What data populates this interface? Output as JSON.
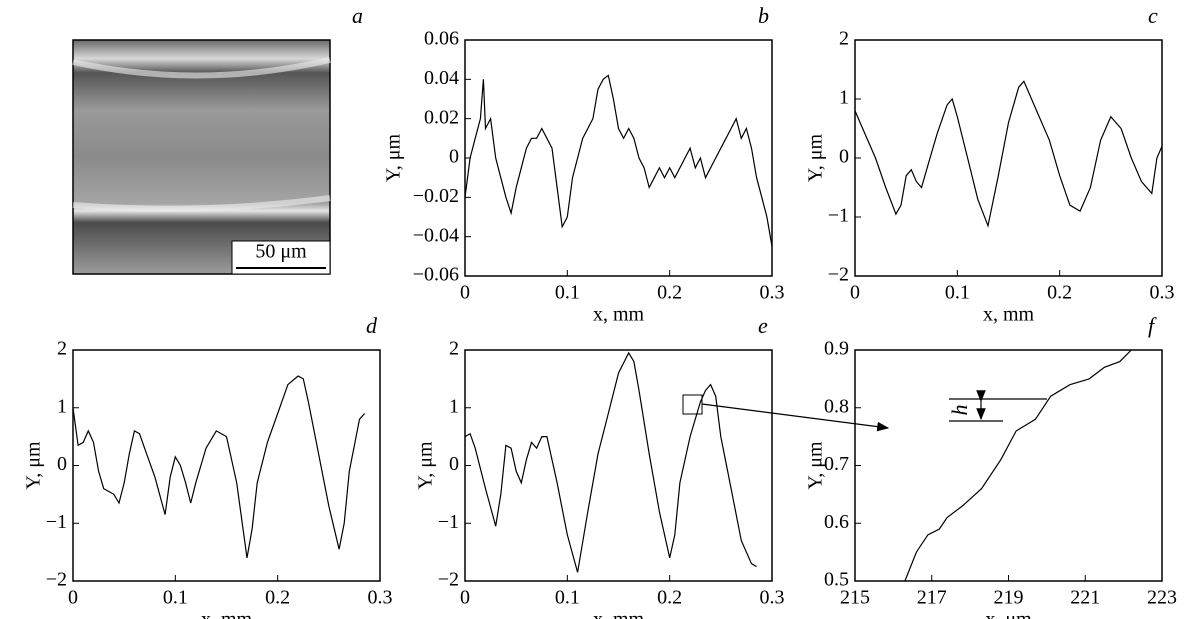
{
  "image_panel": {
    "label": "a",
    "scale_bar": "50 μm"
  },
  "chart_data": [
    {
      "type": "line",
      "label": "b",
      "xlabel": "x, mm",
      "ylabel": "Y, μm",
      "xlim": [
        0,
        0.3
      ],
      "xticks": [
        0,
        0.1,
        0.2,
        0.3
      ],
      "ylim": [
        -0.06,
        0.06
      ],
      "yticks": [
        {
          "value": -0.06,
          "label": "−0.06"
        },
        {
          "value": -0.04,
          "label": "−0.04"
        },
        {
          "value": -0.02,
          "label": "−0.02"
        },
        0,
        0.02,
        0.04,
        0.06
      ],
      "series": [
        {
          "color": "#000000",
          "x": [
            0,
            0.005,
            0.01,
            0.015,
            0.018,
            0.02,
            0.025,
            0.03,
            0.035,
            0.04,
            0.045,
            0.05,
            0.055,
            0.06,
            0.065,
            0.07,
            0.075,
            0.08,
            0.085,
            0.09,
            0.095,
            0.1,
            0.105,
            0.11,
            0.115,
            0.12,
            0.125,
            0.13,
            0.135,
            0.14,
            0.145,
            0.15,
            0.155,
            0.16,
            0.165,
            0.17,
            0.175,
            0.18,
            0.185,
            0.19,
            0.195,
            0.2,
            0.205,
            0.21,
            0.215,
            0.22,
            0.225,
            0.23,
            0.235,
            0.24,
            0.245,
            0.25,
            0.255,
            0.26,
            0.265,
            0.27,
            0.275,
            0.28,
            0.285,
            0.29,
            0.295,
            0.3
          ],
          "values": [
            -0.02,
            0.0,
            0.01,
            0.02,
            0.04,
            0.015,
            0.02,
            0.0,
            -0.01,
            -0.02,
            -0.028,
            -0.015,
            -0.005,
            0.005,
            0.01,
            0.01,
            0.015,
            0.01,
            0.005,
            -0.015,
            -0.035,
            -0.03,
            -0.01,
            0.0,
            0.01,
            0.015,
            0.02,
            0.035,
            0.04,
            0.042,
            0.03,
            0.015,
            0.01,
            0.015,
            0.01,
            0.0,
            -0.005,
            -0.015,
            -0.01,
            -0.005,
            -0.01,
            -0.005,
            -0.01,
            -0.005,
            0.0,
            0.005,
            -0.005,
            0.0,
            -0.01,
            -0.005,
            0.0,
            0.005,
            0.01,
            0.015,
            0.02,
            0.01,
            0.015,
            0.005,
            -0.01,
            -0.02,
            -0.03,
            -0.045
          ]
        }
      ]
    },
    {
      "type": "line",
      "label": "c",
      "xlabel": "x, mm",
      "ylabel": "Y, μm",
      "xlim": [
        0,
        0.3
      ],
      "xticks": [
        0,
        0.1,
        0.2,
        0.3
      ],
      "ylim": [
        -2,
        2
      ],
      "yticks": [
        {
          "value": -2,
          "label": "−2"
        },
        {
          "value": -1,
          "label": "−1"
        },
        0,
        1,
        2
      ],
      "series": [
        {
          "color": "#000000",
          "x": [
            0,
            0.01,
            0.02,
            0.03,
            0.04,
            0.045,
            0.05,
            0.055,
            0.06,
            0.065,
            0.07,
            0.08,
            0.09,
            0.095,
            0.1,
            0.11,
            0.12,
            0.13,
            0.14,
            0.15,
            0.16,
            0.165,
            0.17,
            0.18,
            0.19,
            0.2,
            0.21,
            0.22,
            0.23,
            0.24,
            0.25,
            0.26,
            0.27,
            0.28,
            0.29,
            0.295,
            0.3
          ],
          "values": [
            0.8,
            0.4,
            0,
            -0.5,
            -0.95,
            -0.8,
            -0.3,
            -0.2,
            -0.4,
            -0.5,
            -0.2,
            0.4,
            0.9,
            1.0,
            0.7,
            0.0,
            -0.7,
            -1.15,
            -0.3,
            0.6,
            1.2,
            1.3,
            1.1,
            0.7,
            0.3,
            -0.3,
            -0.8,
            -0.9,
            -0.5,
            0.3,
            0.7,
            0.5,
            0.0,
            -0.4,
            -0.6,
            0.0,
            0.2
          ]
        }
      ]
    },
    {
      "type": "line",
      "label": "d",
      "xlabel": "x, mm",
      "ylabel": "Y, μm",
      "xlim": [
        0,
        0.3
      ],
      "xticks": [
        0,
        0.1,
        0.2,
        0.3
      ],
      "ylim": [
        -2,
        2
      ],
      "yticks": [
        {
          "value": -2,
          "label": "−2"
        },
        {
          "value": -1,
          "label": "−1"
        },
        0,
        1,
        2
      ],
      "series": [
        {
          "color": "#000000",
          "x": [
            0,
            0.005,
            0.01,
            0.015,
            0.02,
            0.025,
            0.03,
            0.035,
            0.04,
            0.045,
            0.05,
            0.055,
            0.06,
            0.065,
            0.07,
            0.08,
            0.09,
            0.095,
            0.1,
            0.105,
            0.11,
            0.115,
            0.12,
            0.13,
            0.14,
            0.15,
            0.16,
            0.17,
            0.175,
            0.18,
            0.19,
            0.2,
            0.21,
            0.22,
            0.225,
            0.23,
            0.24,
            0.25,
            0.26,
            0.265,
            0.27,
            0.28,
            0.285
          ],
          "values": [
            1.0,
            0.35,
            0.4,
            0.6,
            0.4,
            -0.1,
            -0.4,
            -0.45,
            -0.5,
            -0.65,
            -0.3,
            0.2,
            0.6,
            0.55,
            0.3,
            -0.2,
            -0.85,
            -0.2,
            0.15,
            0.0,
            -0.3,
            -0.65,
            -0.3,
            0.3,
            0.6,
            0.5,
            -0.3,
            -1.6,
            -1.1,
            -0.3,
            0.4,
            0.9,
            1.4,
            1.55,
            1.5,
            1.1,
            0.2,
            -0.7,
            -1.45,
            -1.0,
            -0.1,
            0.8,
            0.9
          ]
        }
      ]
    },
    {
      "type": "line",
      "label": "e",
      "xlabel": "x, mm",
      "ylabel": "Y, μm",
      "xlim": [
        0,
        0.3
      ],
      "xticks": [
        0,
        0.1,
        0.2,
        0.3
      ],
      "ylim": [
        -2,
        2
      ],
      "yticks": [
        {
          "value": -2,
          "label": "−2"
        },
        {
          "value": -1,
          "label": "−1"
        },
        0,
        1,
        2
      ],
      "series": [
        {
          "color": "#000000",
          "x": [
            0,
            0.005,
            0.01,
            0.02,
            0.03,
            0.035,
            0.04,
            0.045,
            0.05,
            0.055,
            0.06,
            0.065,
            0.07,
            0.075,
            0.08,
            0.09,
            0.1,
            0.11,
            0.12,
            0.13,
            0.14,
            0.15,
            0.16,
            0.165,
            0.17,
            0.18,
            0.19,
            0.2,
            0.205,
            0.21,
            0.22,
            0.23,
            0.235,
            0.24,
            0.245,
            0.25,
            0.26,
            0.27,
            0.28,
            0.285
          ],
          "values": [
            0.5,
            0.55,
            0.3,
            -0.4,
            -1.05,
            -0.5,
            0.35,
            0.3,
            -0.1,
            -0.3,
            0.1,
            0.4,
            0.3,
            0.5,
            0.5,
            -0.3,
            -1.2,
            -1.85,
            -0.8,
            0.2,
            0.9,
            1.6,
            1.95,
            1.8,
            1.3,
            0.2,
            -0.8,
            -1.6,
            -1.2,
            -0.3,
            0.5,
            1.1,
            1.3,
            1.4,
            1.2,
            0.5,
            -0.4,
            -1.3,
            -1.7,
            -1.75
          ]
        }
      ]
    },
    {
      "type": "line",
      "label": "f",
      "xlabel": "x, μm",
      "ylabel": "Y, μm",
      "annotation": "h",
      "xlim": [
        215,
        223
      ],
      "xticks": [
        215,
        217,
        219,
        221,
        223
      ],
      "ylim": [
        0.5,
        0.9
      ],
      "yticks": [
        0.5,
        0.6,
        0.7,
        0.8,
        0.9
      ],
      "series": [
        {
          "color": "#000000",
          "x": [
            216.3,
            216.6,
            216.9,
            217.2,
            217.4,
            217.8,
            218.3,
            218.8,
            219.2,
            219.7,
            220.1,
            220.6,
            221.1,
            221.5,
            221.9,
            222.2
          ],
          "values": [
            0.5,
            0.55,
            0.58,
            0.59,
            0.61,
            0.63,
            0.66,
            0.71,
            0.76,
            0.78,
            0.82,
            0.84,
            0.85,
            0.87,
            0.88,
            0.9
          ]
        }
      ]
    }
  ]
}
